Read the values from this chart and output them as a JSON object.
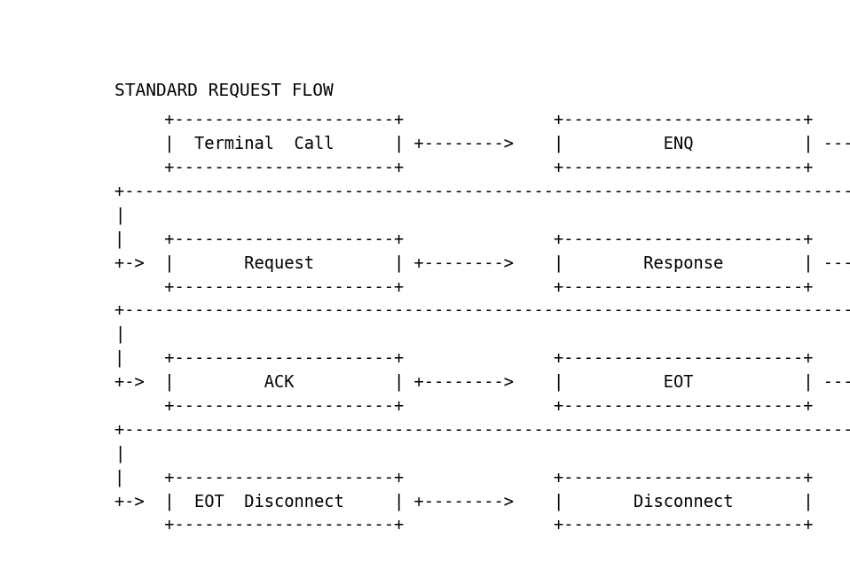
{
  "title": "STANDARD REQUEST FLOW",
  "background_color": "#ffffff",
  "text_color": "#000000",
  "font_family": "monospace",
  "title_fontsize": 14,
  "content_fontsize": 13.5,
  "lines": [
    "     +----------------------+               +------------------------+",
    "     |  Terminal  Call      | +--------->   |          ENQ           | ---+",
    "     +----------------------+               +------------------------+    |",
    "+--------------------------------------------------------------------------- +",
    "|",
    "|    +----------------------+               +------------------------+",
    "+->  |        Request       | +--------->   |        Response        | ---+",
    "     +----------------------+               +------------------------+    |",
    "+--------------------------------------------------------------------------- +",
    "|",
    "|    +----------------------+               +------------------------+",
    "+->  |         ACK          | +--------->   |          EOT           | ---+",
    "     +----------------------+               +------------------------+    |",
    "+--------------------------------------------------------------------------- +",
    "|",
    "|    +----------------------+               +------------------------+",
    "+->  |  EOT   Disconnect    | +--------->   |       Disconnect       |",
    "     +----------------------+               +------------------------+"
  ]
}
